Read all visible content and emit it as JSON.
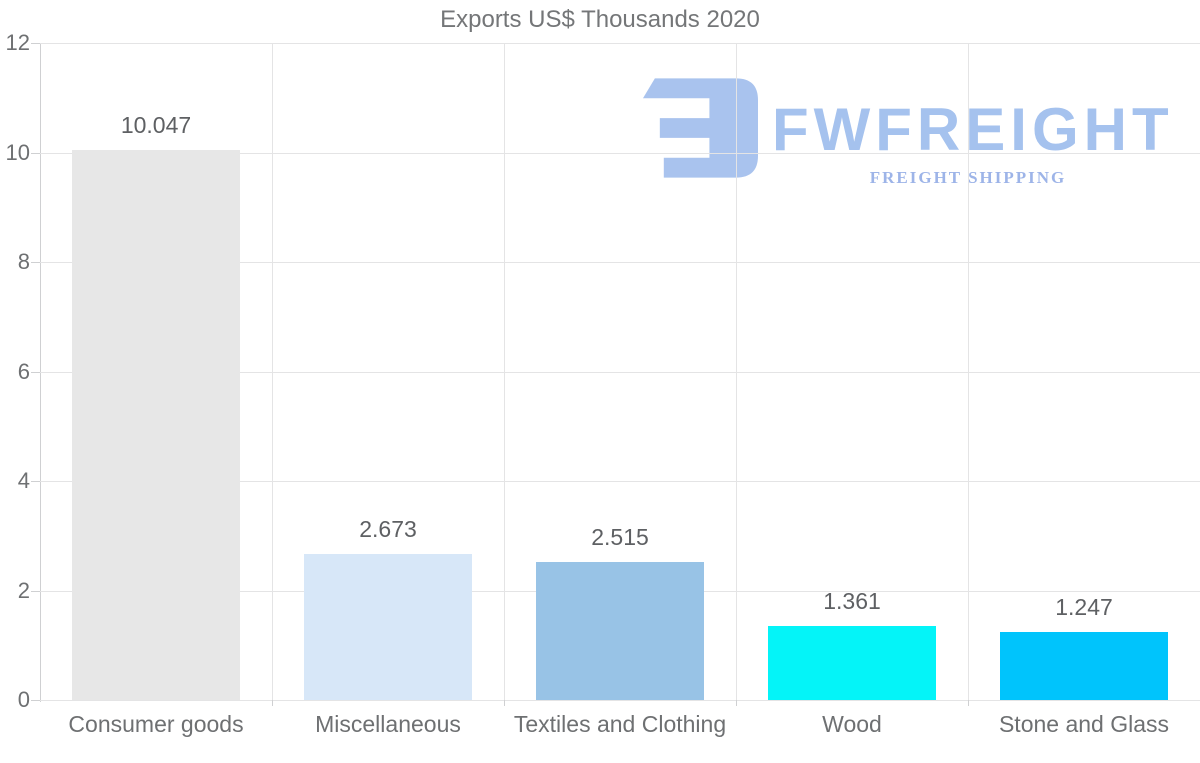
{
  "title": "Exports US$ Thousands 2020",
  "logo": {
    "wordmark": "FWFREIGHT",
    "subtitle": "FREIGHT SHIPPING",
    "mark_icon": "fwfreight-stylized-mark",
    "mark_color": "#a9c3ee",
    "wordmark_color": "#a5c2ee",
    "subtitle_color": "#9db4e8"
  },
  "chart_data": {
    "type": "bar",
    "title": "Exports US$ Thousands 2020",
    "categories": [
      "Consumer goods",
      "Miscellaneous",
      "Textiles and Clothing",
      "Wood",
      "Stone and Glass"
    ],
    "values": [
      10.047,
      2.673,
      2.515,
      1.361,
      1.247
    ],
    "value_labels": [
      "10.047",
      "2.673",
      "2.515",
      "1.361",
      "1.247"
    ],
    "bar_colors": [
      "#e7e7e7",
      "#d7e7f8",
      "#98c3e6",
      "#04f4f8",
      "#00c4fc"
    ],
    "xlabel": "",
    "ylabel": "",
    "ylim": [
      0,
      12
    ],
    "yticks": [
      0,
      2,
      4,
      6,
      8,
      10,
      12
    ],
    "grid": true,
    "legend": false,
    "value_label_position": "above-bar"
  },
  "colors": {
    "title_text": "#747678",
    "axis_text": "#6e7072",
    "value_text": "#5e6063",
    "gridline": "#e4e4e5",
    "axis_line": "#cfd0d2",
    "background": "#ffffff"
  }
}
